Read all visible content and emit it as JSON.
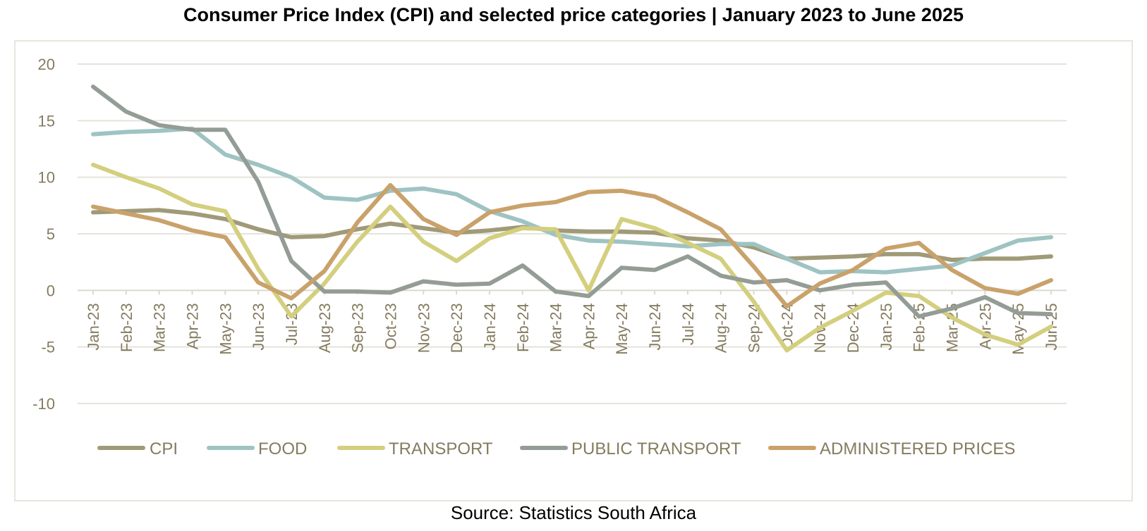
{
  "title": "Consumer Price Index (CPI) and selected price categories | January 2023 to June 2025",
  "source": "Source: Statistics South Africa",
  "chart_data": {
    "type": "line",
    "title": "Consumer Price Index (CPI) and selected price categories | January 2023 to June 2025",
    "xlabel": "",
    "ylabel": "",
    "ylim": [
      -10,
      20
    ],
    "yticks": [
      20,
      15,
      10,
      5,
      0,
      -5,
      -10
    ],
    "grid": true,
    "legend_position": "bottom",
    "categories": [
      "Jan-23",
      "Feb-23",
      "Mar-23",
      "Apr-23",
      "May-23",
      "Jun-23",
      "Jul-23",
      "Aug-23",
      "Sep-23",
      "Oct-23",
      "Nov-23",
      "Dec-23",
      "Jan-24",
      "Feb-24",
      "Mar-24",
      "Apr-24",
      "May-24",
      "Jun-24",
      "Jul-24",
      "Aug-24",
      "Sep-24",
      "Oct-24",
      "Nov-24",
      "Dec-24",
      "Jan-25",
      "Feb-25",
      "Mar-25",
      "Apr-25",
      "May-25",
      "Jun-25"
    ],
    "series": [
      {
        "name": "CPI",
        "color": "#a09a78",
        "values": [
          6.9,
          7.0,
          7.1,
          6.8,
          6.3,
          5.4,
          4.7,
          4.8,
          5.4,
          5.9,
          5.5,
          5.1,
          5.3,
          5.6,
          5.3,
          5.2,
          5.2,
          5.1,
          4.6,
          4.4,
          3.8,
          2.8,
          2.9,
          3.0,
          3.2,
          3.2,
          2.7,
          2.8,
          2.8,
          3.0
        ]
      },
      {
        "name": "FOOD",
        "color": "#9fc3c3",
        "values": [
          13.8,
          14.0,
          14.1,
          14.3,
          12.0,
          11.1,
          10.0,
          8.2,
          8.0,
          8.8,
          9.0,
          8.5,
          7.0,
          6.1,
          4.9,
          4.4,
          4.3,
          4.1,
          3.9,
          4.1,
          4.1,
          2.8,
          1.6,
          1.7,
          1.6,
          1.9,
          2.2,
          3.3,
          4.4,
          4.7
        ]
      },
      {
        "name": "TRANSPORT",
        "color": "#d4cf7e",
        "values": [
          11.1,
          10.0,
          9.0,
          7.6,
          7.0,
          1.9,
          -2.3,
          0.6,
          4.3,
          7.4,
          4.3,
          2.6,
          4.6,
          5.5,
          5.4,
          0.0,
          6.3,
          5.5,
          4.2,
          2.8,
          -1.0,
          -5.3,
          -3.3,
          -1.8,
          -0.2,
          -0.5,
          -2.4,
          -3.9,
          -4.8,
          -3.2
        ]
      },
      {
        "name": "PUBLIC TRANSPORT",
        "color": "#949d95",
        "values": [
          18.0,
          15.8,
          14.6,
          14.2,
          14.2,
          9.6,
          2.6,
          -0.1,
          -0.1,
          -0.2,
          0.8,
          0.5,
          0.6,
          2.2,
          -0.1,
          -0.5,
          2.0,
          1.8,
          3.0,
          1.3,
          0.7,
          0.9,
          0.0,
          0.5,
          0.7,
          -2.3,
          -1.6,
          -0.6,
          -2.0,
          -2.1
        ]
      },
      {
        "name": "ADMINISTERED PRICES",
        "color": "#c9a26b",
        "values": [
          7.4,
          6.8,
          6.2,
          5.3,
          4.7,
          0.7,
          -0.7,
          1.7,
          6.0,
          9.3,
          6.3,
          4.9,
          6.9,
          7.5,
          7.8,
          8.7,
          8.8,
          8.3,
          6.9,
          5.4,
          2.1,
          -1.4,
          0.6,
          1.8,
          3.7,
          4.2,
          1.8,
          0.2,
          -0.3,
          0.9
        ]
      }
    ]
  }
}
